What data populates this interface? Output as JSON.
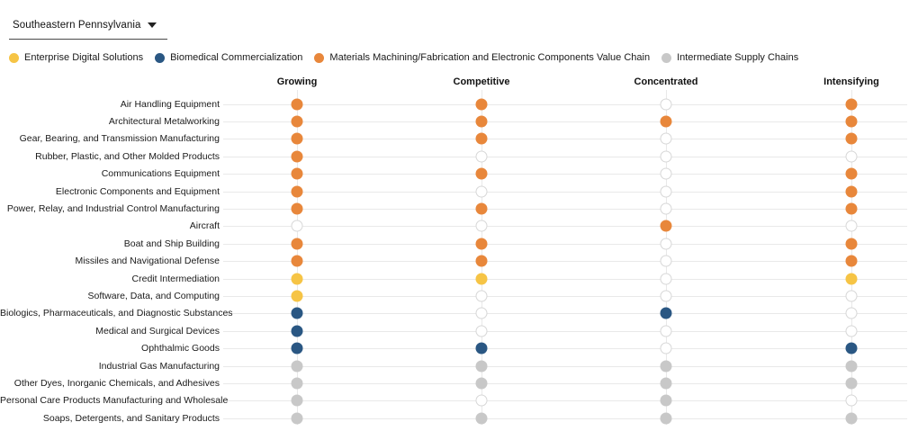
{
  "region_selector": {
    "value": "Southeastern Pennsylvania",
    "icon": "dropdown-arrow"
  },
  "legend": [
    {
      "key": "enterprise",
      "label": "Enterprise Digital Solutions",
      "color": "#F6C445"
    },
    {
      "key": "biomedical",
      "label": "Biomedical Commercialization",
      "color": "#2A5783"
    },
    {
      "key": "materials",
      "label": "Materials Machining/Fabrication and Electronic Components Value Chain",
      "color": "#E8873B"
    },
    {
      "key": "intermediate",
      "label": "Intermediate Supply Chains",
      "color": "#C8C8C8"
    }
  ],
  "chart_data": {
    "type": "heatmap",
    "description": "Dot matrix: industries (rows) vs market attributes (columns); filled dot = attribute applies, colored by value-chain cluster; empty circle = does not apply",
    "columns": [
      "Growing",
      "Competitive",
      "Concentrated",
      "Intensifying"
    ],
    "cluster_colors": {
      "enterprise": "#F6C445",
      "biomedical": "#2A5783",
      "materials": "#E8873B",
      "intermediate": "#C8C8C8"
    },
    "empty_fill": "#FFFFFF",
    "empty_border": "#D7D7D7",
    "grid_color": "#E9E9E9",
    "rows": [
      {
        "label": "Air Handling Equipment",
        "cluster": "materials",
        "cells": [
          1,
          1,
          0,
          1
        ]
      },
      {
        "label": "Architectural Metalworking",
        "cluster": "materials",
        "cells": [
          1,
          1,
          1,
          1
        ]
      },
      {
        "label": "Gear, Bearing, and Transmission Manufacturing",
        "cluster": "materials",
        "cells": [
          1,
          1,
          0,
          1
        ]
      },
      {
        "label": "Rubber, Plastic, and Other Molded Products",
        "cluster": "materials",
        "cells": [
          1,
          0,
          0,
          0
        ]
      },
      {
        "label": "Communications Equipment",
        "cluster": "materials",
        "cells": [
          1,
          1,
          0,
          1
        ]
      },
      {
        "label": "Electronic Components and Equipment",
        "cluster": "materials",
        "cells": [
          1,
          0,
          0,
          1
        ]
      },
      {
        "label": "Power, Relay, and Industrial Control Manufacturing",
        "cluster": "materials",
        "cells": [
          1,
          1,
          0,
          1
        ]
      },
      {
        "label": "Aircraft",
        "cluster": "materials",
        "cells": [
          0,
          0,
          1,
          0
        ]
      },
      {
        "label": "Boat and Ship Building",
        "cluster": "materials",
        "cells": [
          1,
          1,
          0,
          1
        ]
      },
      {
        "label": "Missiles and Navigational Defense",
        "cluster": "materials",
        "cells": [
          1,
          1,
          0,
          1
        ]
      },
      {
        "label": "Credit Intermediation",
        "cluster": "enterprise",
        "cells": [
          1,
          1,
          0,
          1
        ]
      },
      {
        "label": "Software, Data, and Computing",
        "cluster": "enterprise",
        "cells": [
          1,
          0,
          0,
          0
        ]
      },
      {
        "label": "Biologics, Pharmaceuticals, and Diagnostic Substances",
        "cluster": "biomedical",
        "cells": [
          1,
          0,
          1,
          0
        ]
      },
      {
        "label": "Medical and Surgical Devices",
        "cluster": "biomedical",
        "cells": [
          1,
          0,
          0,
          0
        ]
      },
      {
        "label": "Ophthalmic Goods",
        "cluster": "biomedical",
        "cells": [
          1,
          1,
          0,
          1
        ]
      },
      {
        "label": "Industrial Gas Manufacturing",
        "cluster": "intermediate",
        "cells": [
          1,
          1,
          1,
          1
        ]
      },
      {
        "label": "Other Dyes, Inorganic Chemicals, and Adhesives",
        "cluster": "intermediate",
        "cells": [
          1,
          1,
          1,
          1
        ]
      },
      {
        "label": "Personal Care Products Manufacturing and Wholesale",
        "cluster": "intermediate",
        "cells": [
          1,
          0,
          1,
          0
        ]
      },
      {
        "label": "Soaps, Detergents, and Sanitary Products",
        "cluster": "intermediate",
        "cells": [
          1,
          1,
          1,
          1
        ]
      }
    ]
  }
}
